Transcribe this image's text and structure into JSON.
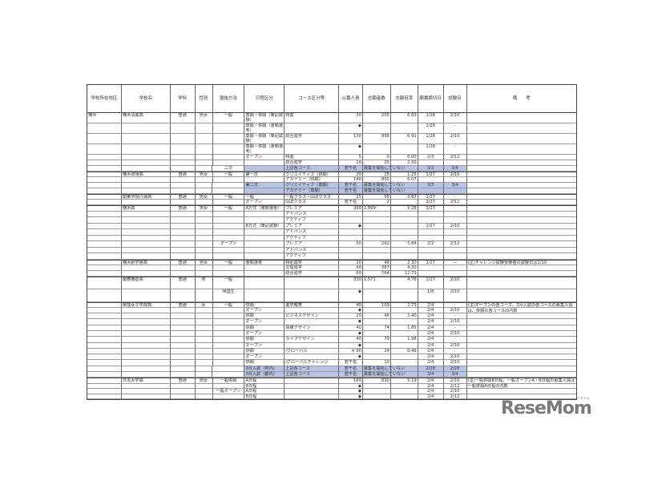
{
  "header": [
    "学校所在地区",
    "学校名",
    "学科",
    "性別",
    "選抜方法",
    "日程区分",
    "コース区分等",
    "公募人員",
    "志願者数",
    "志願倍率",
    "願書締切日",
    "試験日",
    "備　　考"
  ],
  "rows": [
    {
      "cells": [
        "横浜",
        "横浜清風高",
        "普通",
        "男女",
        "一般",
        "専願・併願（筆記試験）",
        "特進",
        "30",
        "205",
        "6.83",
        "1/28",
        "2/10",
        ""
      ]
    },
    {
      "cells": [
        "",
        "",
        "",
        "",
        "",
        "専願・併願（書類選考）",
        "",
        "◆",
        "",
        "",
        "1/28",
        "-",
        ""
      ]
    },
    {
      "cells": [
        "",
        "",
        "",
        "",
        "",
        "専願・併願（筆記試験）",
        "総合進学",
        "130",
        "898",
        "6.91",
        "1/28",
        "2/10",
        ""
      ]
    },
    {
      "cells": [
        "",
        "",
        "",
        "",
        "",
        "専願・併願（書類選考）",
        "",
        "◆",
        "",
        "",
        "1/28",
        "-",
        ""
      ]
    },
    {
      "cells": [
        "",
        "",
        "",
        "",
        "",
        "オープン",
        "特進",
        "5",
        "0",
        "0.00",
        "2/3",
        "2/12",
        ""
      ]
    },
    {
      "cells": [
        "",
        "",
        "",
        "",
        "",
        "",
        "総合進学",
        "10",
        "25",
        "2.50",
        "",
        "",
        ""
      ]
    },
    {
      "highlight": true,
      "cells": [
        "",
        "",
        "",
        "",
        "二次",
        "",
        "上記各コース",
        "若干名",
        "募集を開始していない",
        "",
        "3/3",
        "3/4",
        ""
      ]
    },
    {
      "cells": [
        "",
        "横浜翠陵高",
        "普通",
        "男女",
        "一般",
        "第一次",
        "クリエイティブ（併願）",
        "20",
        "25",
        "1.25",
        "1/27",
        "2/10",
        ""
      ]
    },
    {
      "cells": [
        "",
        "",
        "",
        "",
        "",
        "",
        "アカデミー（併願）",
        "140",
        "850",
        "6.07",
        "",
        "",
        ""
      ]
    },
    {
      "highlight": true,
      "cells": [
        "",
        "",
        "",
        "",
        "",
        "第二次",
        "クリエイティブ（専願）",
        "若干名",
        "募集を開始していない",
        "",
        "3/3",
        "3/4",
        ""
      ]
    },
    {
      "highlight": true,
      "cells": [
        "",
        "",
        "",
        "",
        "",
        "",
        "アカデミー（専願）",
        "若干名",
        "募集を開始していない",
        "",
        "",
        "",
        ""
      ]
    },
    {
      "cells": [
        "",
        "関東学院六浦高",
        "普通",
        "男女",
        "一般",
        "一般",
        "一般クラス・GLEクラス",
        "15",
        "58",
        "3.87",
        "1/27",
        "-",
        ""
      ]
    },
    {
      "cells": [
        "",
        "",
        "",
        "",
        "",
        "オープン",
        "GLEクラス",
        "若干名",
        "2",
        "-",
        "1/27",
        "2/11",
        ""
      ]
    },
    {
      "cells": [
        "",
        "横浜高",
        "普通",
        "男女",
        "一般",
        "A方式（書類選考）",
        "プレミア",
        "360",
        "1,899",
        "5.28",
        "1/27",
        "-",
        ""
      ]
    },
    {
      "cells": [
        "",
        "",
        "",
        "",
        "",
        "",
        "アドバンス",
        "",
        "",
        "",
        "",
        "",
        ""
      ]
    },
    {
      "cells": [
        "",
        "",
        "",
        "",
        "",
        "",
        "アクティブ",
        "",
        "",
        "",
        "",
        "",
        ""
      ]
    },
    {
      "cells": [
        "",
        "",
        "",
        "",
        "",
        "B方式（筆記試験）",
        "プレミア",
        "◆",
        "",
        "",
        "1/27",
        "2/10",
        ""
      ]
    },
    {
      "cells": [
        "",
        "",
        "",
        "",
        "",
        "",
        "アドバンス",
        "",
        "",
        "",
        "",
        "",
        ""
      ]
    },
    {
      "cells": [
        "",
        "",
        "",
        "",
        "",
        "",
        "アクティブ",
        "",
        "",
        "",
        "",
        "",
        ""
      ]
    },
    {
      "cells": [
        "",
        "",
        "",
        "",
        "オープン",
        "",
        "プレミア",
        "50",
        "292",
        "5.84",
        "2/2",
        "2/12",
        ""
      ]
    },
    {
      "cells": [
        "",
        "",
        "",
        "",
        "",
        "",
        "アドバンス",
        "",
        "",
        "",
        "",
        "",
        ""
      ]
    },
    {
      "cells": [
        "",
        "",
        "",
        "",
        "",
        "",
        "アクティブ",
        "",
        "",
        "",
        "",
        "",
        ""
      ]
    },
    {
      "cells": [
        "",
        "横浜創学館高",
        "普通",
        "男女",
        "一般",
        "書類選考",
        "特別進学",
        "20",
        "46",
        "2.30",
        "1/27",
        "—",
        "(注)チャレンジ試験受験者の試験日は2/10"
      ]
    },
    {
      "cells": [
        "",
        "",
        "",
        "",
        "",
        "",
        "文理進学",
        "90",
        "387",
        "4.30",
        "",
        "",
        ""
      ]
    },
    {
      "cells": [
        "",
        "",
        "",
        "",
        "",
        "",
        "総合進学",
        "60",
        "764",
        "12.73",
        "",
        "",
        ""
      ]
    },
    {
      "cells": [
        "",
        "慶應義塾高",
        "普通",
        "男",
        "一般",
        "",
        "",
        "330",
        "1,571",
        "4.76",
        "1/27",
        "2/10",
        ""
      ]
    },
    {
      "cells": [
        "",
        "",
        "",
        "",
        "帰国生",
        "",
        "",
        "◆",
        "",
        "",
        "1/8",
        "2/10",
        ""
      ]
    },
    {
      "cells": [
        "",
        "英理女子学院高",
        "普通",
        "女",
        "一般",
        "併願",
        "進学教育",
        "40",
        "109",
        "2.73",
        "2/4",
        "-",
        "(注)オープンの各コース、3月入試の各コースの募集人員は、併願の各コースの内数"
      ]
    },
    {
      "cells": [
        "",
        "",
        "",
        "",
        "",
        "オープン",
        "",
        "◆",
        "",
        "",
        "2/4",
        "2/10",
        ""
      ]
    },
    {
      "cells": [
        "",
        "",
        "",
        "",
        "",
        "併願",
        "ビジネスデザイン",
        "20",
        "48",
        "2.40",
        "2/4",
        "-",
        ""
      ]
    },
    {
      "cells": [
        "",
        "",
        "",
        "",
        "",
        "オープン",
        "",
        "◆",
        "",
        "",
        "2/4",
        "2/10",
        ""
      ]
    },
    {
      "cells": [
        "",
        "",
        "",
        "",
        "",
        "併願",
        "情報デザイン",
        "40",
        "74",
        "1.85",
        "2/4",
        "-",
        ""
      ]
    },
    {
      "cells": [
        "",
        "",
        "",
        "",
        "",
        "オープン",
        "",
        "◆",
        "",
        "",
        "2/4",
        "2/10",
        ""
      ]
    },
    {
      "cells": [
        "",
        "",
        "",
        "",
        "",
        "併願",
        "ライフデザイン",
        "40",
        "79",
        "1.98",
        "2/4",
        "-",
        ""
      ]
    },
    {
      "cells": [
        "",
        "",
        "",
        "",
        "",
        "オープン",
        "",
        "◆",
        "",
        "",
        "2/4",
        "2/10",
        ""
      ]
    },
    {
      "cells": [
        "",
        "",
        "",
        "",
        "",
        "併願",
        "iグローバル",
        "※ 50",
        "24",
        "0.48",
        "2/4",
        "-",
        ""
      ]
    },
    {
      "cells": [
        "",
        "",
        "",
        "",
        "",
        "オープン",
        "",
        "◆",
        "",
        "",
        "2/4",
        "2/10",
        ""
      ]
    },
    {
      "cells": [
        "",
        "",
        "",
        "",
        "",
        "併願",
        "iグローバルチャレンジ",
        "若干名",
        "10",
        "-",
        "2/4",
        "2/10",
        ""
      ]
    },
    {
      "highlight": true,
      "cells": [
        "",
        "",
        "",
        "",
        "",
        "3月入試（県内）",
        "上記各コース",
        "若干名",
        "募集を開始していない",
        "",
        "2/28",
        "2/28",
        ""
      ]
    },
    {
      "highlight": true,
      "cells": [
        "",
        "",
        "",
        "",
        "",
        "3月入試（都内）",
        "上記各コース",
        "若干名",
        "募集を開始していない",
        "",
        "3/4",
        "3/4",
        ""
      ]
    },
    {
      "cells": [
        "",
        "日本大学高",
        "普通",
        "男女",
        "一般併願",
        "A日程",
        "",
        "160",
        "830",
        "5.19",
        "2/4",
        "2/10",
        "(注)一般併願B日程、一般オープンA・B日程の募集人員は一般併願A日程の内数"
      ]
    },
    {
      "cells": [
        "",
        "",
        "",
        "",
        "",
        "B日程",
        "",
        "◆",
        "",
        "",
        "2/4",
        "2/12",
        ""
      ]
    },
    {
      "cells": [
        "",
        "",
        "",
        "",
        "一般オープン",
        "A日程",
        "",
        "◆",
        "",
        "",
        "2/4",
        "2/10",
        ""
      ]
    },
    {
      "cells": [
        "",
        "",
        "",
        "",
        "",
        "B日程",
        "",
        "◆",
        "",
        "",
        "2/4",
        "2/12",
        ""
      ]
    }
  ],
  "logo": {
    "text": "ReseMom",
    "tagline": "リセマム",
    "color": "#7a7a7a"
  }
}
